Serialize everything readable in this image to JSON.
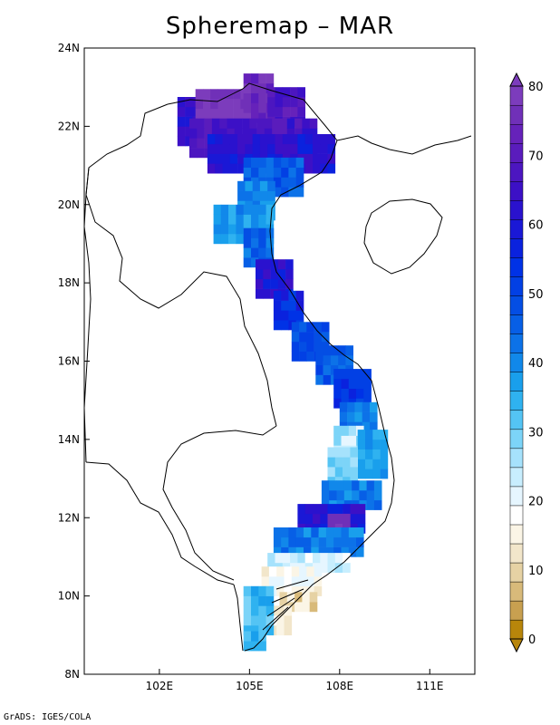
{
  "title": "Spheremap – MAR",
  "credit": "GrADS: IGES/COLA",
  "map": {
    "lon_range": [
      99.5,
      112.5
    ],
    "lat_range": [
      8,
      24
    ],
    "lat_ticks": [
      {
        "value": 8,
        "label": "8N"
      },
      {
        "value": 10,
        "label": "10N"
      },
      {
        "value": 12,
        "label": "12N"
      },
      {
        "value": 14,
        "label": "14N"
      },
      {
        "value": 16,
        "label": "16N"
      },
      {
        "value": 18,
        "label": "18N"
      },
      {
        "value": 20,
        "label": "20N"
      },
      {
        "value": 22,
        "label": "22N"
      },
      {
        "value": 24,
        "label": "24N"
      }
    ],
    "lon_ticks": [
      {
        "value": 102,
        "label": "102E"
      },
      {
        "value": 105,
        "label": "105E"
      },
      {
        "value": 108,
        "label": "108E"
      },
      {
        "value": 111,
        "label": "111E"
      }
    ],
    "grid_res": 0.25
  },
  "colorbar": {
    "min": 0,
    "max": 80,
    "step": 2.5,
    "labels": [
      "0",
      "10",
      "20",
      "30",
      "40",
      "50",
      "60",
      "70",
      "80"
    ],
    "low_colors": [
      "#b8860b",
      "#c8a050",
      "#d8ba7a",
      "#e6d2a4",
      "#f2e6ca",
      "#fbf5e6"
    ],
    "mid_colors": [
      "#ffffff",
      "#e6f6ff"
    ],
    "high_colors": [
      "#c8eefe",
      "#a6e2fc",
      "#7cd4f8",
      "#54c4f4",
      "#2fb2f0",
      "#199fec",
      "#1188ea",
      "#0c72e8",
      "#075fe6",
      "#044ee4",
      "#0240e4",
      "#0032e6",
      "#0a22de",
      "#1a18d6",
      "#2a12ce",
      "#3c10c6",
      "#4c16c0",
      "#5a1cbc",
      "#6622ba",
      "#7030b8",
      "#7c3cbc"
    ]
  },
  "regions": {
    "note_only_for_render": false,
    "cells": [
      {
        "lon": [
          102.6,
          103.2
        ],
        "lat": [
          21.5,
          22.6
        ],
        "v": 56
      },
      {
        "lon": [
          103.2,
          104.8
        ],
        "lat": [
          22.2,
          22.8
        ],
        "v": 72
      },
      {
        "lon": [
          104.8,
          105.6
        ],
        "lat": [
          22.1,
          23.2
        ],
        "v": 68
      },
      {
        "lon": [
          105.6,
          106.8
        ],
        "lat": [
          22.0,
          23.0
        ],
        "v": 62
      },
      {
        "lon": [
          103.0,
          107.2
        ],
        "lat": [
          21.2,
          22.2
        ],
        "v": 60
      },
      {
        "lon": [
          103.6,
          107.8
        ],
        "lat": [
          20.8,
          21.6
        ],
        "v": 55
      },
      {
        "lon": [
          104.8,
          106.8
        ],
        "lat": [
          20.2,
          21.0
        ],
        "v": 42
      },
      {
        "lon": [
          104.6,
          105.8
        ],
        "lat": [
          19.6,
          20.4
        ],
        "v": 36
      },
      {
        "lon": [
          103.8,
          105.6
        ],
        "lat": [
          19.0,
          19.8
        ],
        "v": 34
      },
      {
        "lon": [
          104.8,
          105.8
        ],
        "lat": [
          18.4,
          19.2
        ],
        "v": 40
      },
      {
        "lon": [
          105.2,
          106.4
        ],
        "lat": [
          17.6,
          18.6
        ],
        "v": 55
      },
      {
        "lon": [
          105.8,
          106.8
        ],
        "lat": [
          16.8,
          17.8
        ],
        "v": 50
      },
      {
        "lon": [
          106.4,
          107.6
        ],
        "lat": [
          16.0,
          17.0
        ],
        "v": 45
      },
      {
        "lon": [
          107.2,
          108.4
        ],
        "lat": [
          15.4,
          16.2
        ],
        "v": 42
      },
      {
        "lon": [
          107.8,
          109.0
        ],
        "lat": [
          14.8,
          15.6
        ],
        "v": 48
      },
      {
        "lon": [
          108.0,
          109.2
        ],
        "lat": [
          14.2,
          14.8
        ],
        "v": 38
      },
      {
        "lon": [
          107.8,
          108.6
        ],
        "lat": [
          13.6,
          14.2
        ],
        "v": 22
      },
      {
        "lon": [
          108.6,
          109.4
        ],
        "lat": [
          13.0,
          14.2
        ],
        "v": 34
      },
      {
        "lon": [
          107.6,
          108.6
        ],
        "lat": [
          12.8,
          13.6
        ],
        "v": 26
      },
      {
        "lon": [
          107.4,
          109.2
        ],
        "lat": [
          12.2,
          12.8
        ],
        "v": 38
      },
      {
        "lon": [
          106.6,
          108.8
        ],
        "lat": [
          11.6,
          12.3
        ],
        "v": 55
      },
      {
        "lon": [
          107.6,
          108.2
        ],
        "lat": [
          11.6,
          12.0
        ],
        "v": 72
      },
      {
        "lon": [
          105.8,
          108.6
        ],
        "lat": [
          11.0,
          11.6
        ],
        "v": 38
      },
      {
        "lon": [
          105.6,
          108.2
        ],
        "lat": [
          10.6,
          11.0
        ],
        "v": 20
      },
      {
        "lon": [
          105.4,
          107.2
        ],
        "lat": [
          10.0,
          10.6
        ],
        "v": 16
      },
      {
        "lon": [
          106.0,
          107.2
        ],
        "lat": [
          9.6,
          10.0
        ],
        "v": 10
      },
      {
        "lon": [
          105.4,
          106.4
        ],
        "lat": [
          9.0,
          9.6
        ],
        "v": 14
      },
      {
        "lon": [
          104.8,
          105.6
        ],
        "lat": [
          9.0,
          10.2
        ],
        "v": 30
      },
      {
        "lon": [
          104.8,
          105.4
        ],
        "lat": [
          8.6,
          9.0
        ],
        "v": 32
      }
    ]
  }
}
